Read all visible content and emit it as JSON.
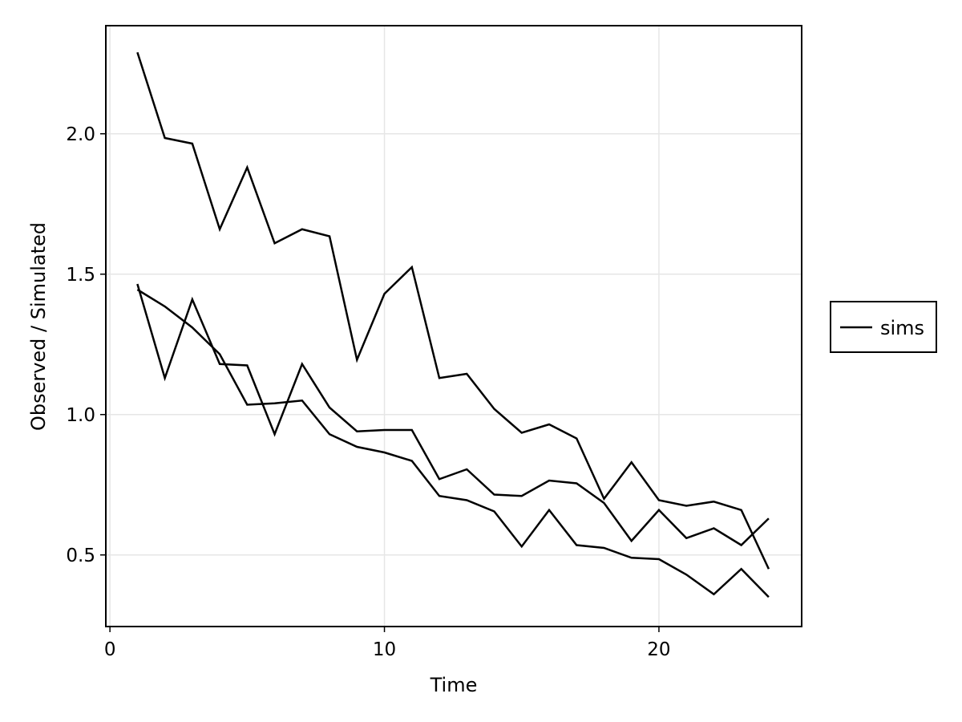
{
  "chart_data": {
    "type": "line",
    "title": "",
    "xlabel": "Time",
    "ylabel": "Observed / Simulated",
    "xlim": [
      -0.15,
      25.2
    ],
    "ylim": [
      0.245,
      2.385
    ],
    "xticks": [
      0,
      10,
      20
    ],
    "xtick_labels": [
      "0",
      "10",
      "20"
    ],
    "yticks": [
      0.5,
      1.0,
      1.5,
      2.0
    ],
    "ytick_labels": [
      "0.5",
      "1.0",
      "1.5",
      "2.0"
    ],
    "grid": true,
    "legend": {
      "placement": "right",
      "entries": [
        "sims"
      ]
    },
    "line_color": "#000000",
    "series": [
      {
        "x": [
          1,
          2,
          3,
          4,
          5,
          6,
          7,
          8,
          9,
          10,
          11,
          12,
          13,
          14,
          15,
          16,
          17,
          18,
          19,
          20,
          21,
          22,
          23,
          24
        ],
        "values": [
          2.29,
          1.985,
          1.965,
          1.66,
          1.88,
          1.61,
          1.66,
          1.635,
          1.195,
          1.43,
          1.525,
          1.13,
          1.145,
          1.02,
          0.935,
          0.965,
          0.915,
          0.7,
          0.83,
          0.695,
          0.675,
          0.69,
          0.66,
          0.45
        ]
      },
      {
        "x": [
          1,
          2,
          3,
          4,
          5,
          6,
          7,
          8,
          9,
          10,
          11,
          12,
          13,
          14,
          15,
          16,
          17,
          18,
          19,
          20,
          21,
          22,
          23,
          24
        ],
        "values": [
          1.445,
          1.385,
          1.31,
          1.215,
          1.035,
          1.04,
          1.05,
          0.93,
          0.885,
          0.865,
          0.835,
          0.71,
          0.695,
          0.655,
          0.53,
          0.66,
          0.535,
          0.525,
          0.49,
          0.485,
          0.43,
          0.36,
          0.45,
          0.35
        ]
      },
      {
        "x": [
          1,
          2,
          3,
          4,
          5,
          6,
          7,
          8,
          9,
          10,
          11,
          12,
          13,
          14,
          15,
          16,
          17,
          18,
          19,
          20,
          21,
          22,
          23,
          24
        ],
        "values": [
          1.465,
          1.13,
          1.41,
          1.18,
          1.175,
          0.93,
          1.18,
          1.025,
          0.94,
          0.945,
          0.945,
          0.77,
          0.805,
          0.715,
          0.71,
          0.765,
          0.755,
          0.685,
          0.55,
          0.66,
          0.56,
          0.595,
          0.535,
          0.63
        ]
      }
    ]
  }
}
